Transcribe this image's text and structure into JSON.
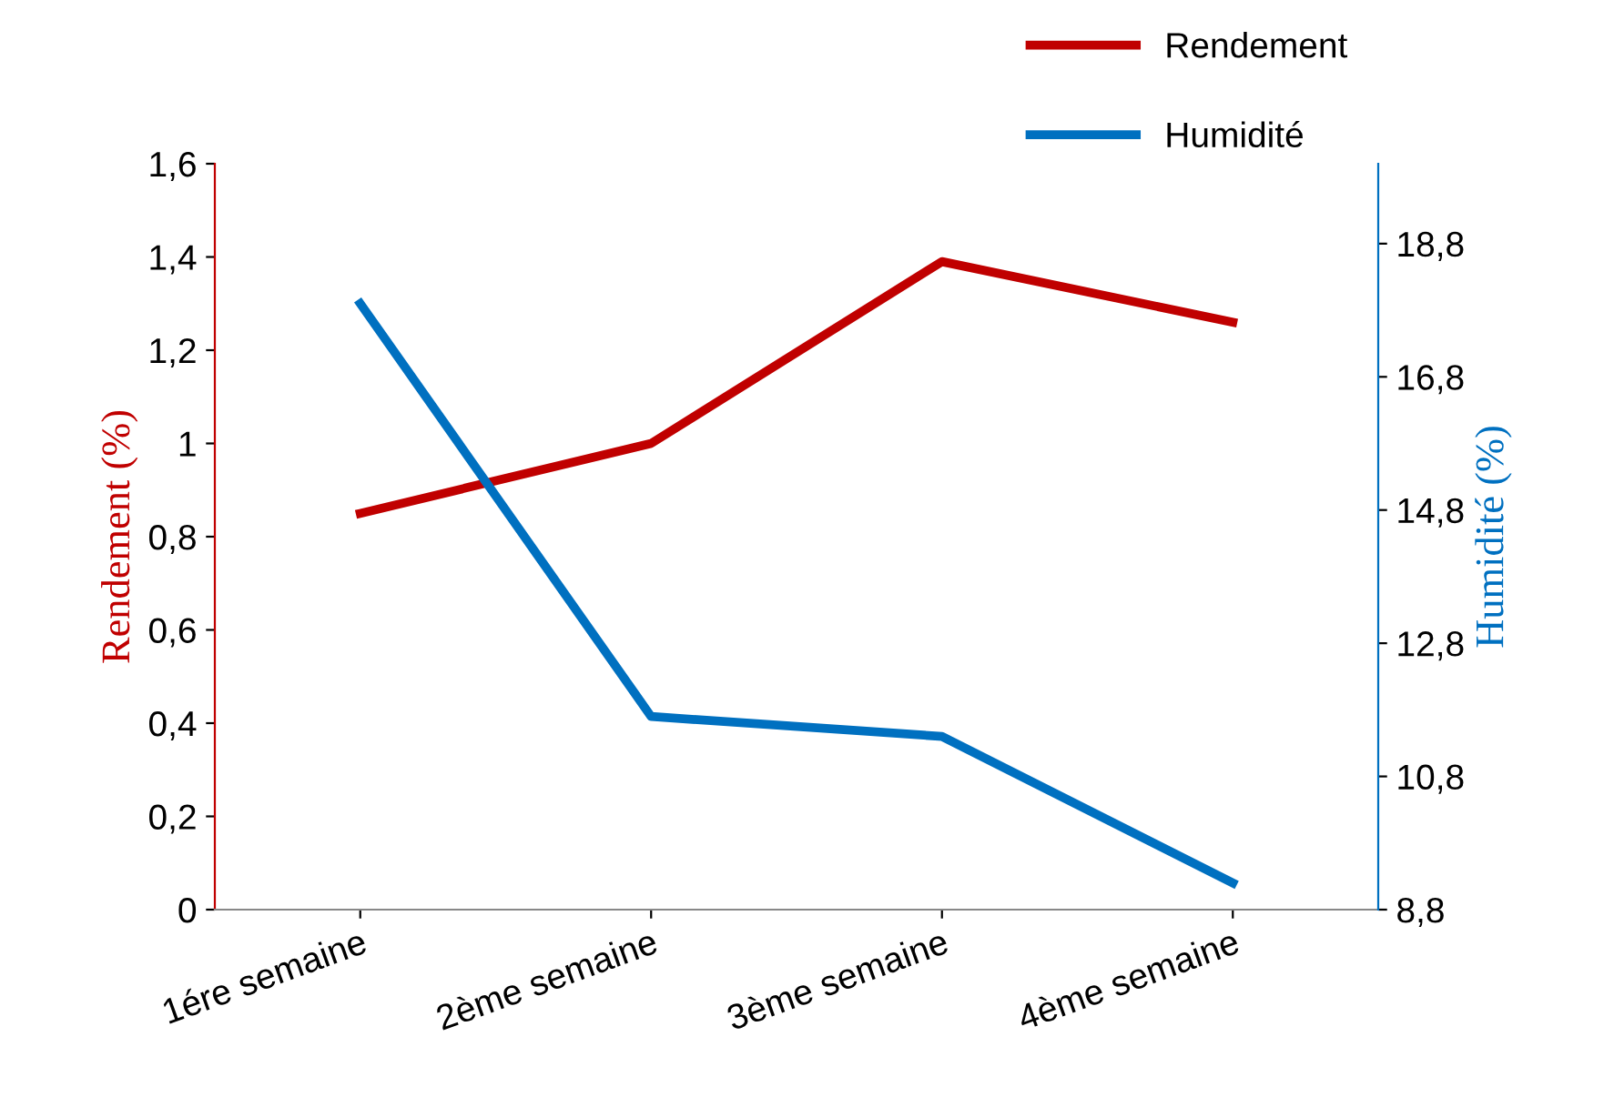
{
  "chart_data": {
    "type": "line",
    "categories": [
      "1ére semaine",
      "2ème semaine",
      "3ème semaine",
      "4ème semaine"
    ],
    "series": [
      {
        "name": "Rendement",
        "color": "#c00000",
        "values": [
          0.85,
          1.0,
          1.39,
          1.26
        ]
      },
      {
        "name": "Humidité",
        "color": "#0070c0",
        "values": [
          17.9,
          11.7,
          11.4,
          9.2
        ],
        "axis": "y2"
      }
    ],
    "ylabel": "Rendement (%)",
    "y2label": "Humidité (%)",
    "ylim": [
      0,
      1.6
    ],
    "yticks": [
      0,
      {
        "value": 0.2,
        "label": "0,2"
      },
      {
        "value": 0.4,
        "label": "0,4"
      },
      {
        "value": 0.6,
        "label": "0,6"
      },
      {
        "value": 0.8,
        "label": "0,8"
      },
      1,
      {
        "value": 1.2,
        "label": "1,2"
      },
      {
        "value": 1.4,
        "label": "1,4"
      },
      {
        "value": 1.6,
        "label": "1,6"
      }
    ],
    "y2lim": [
      8.8,
      20
    ],
    "y2ticks": [
      {
        "value": 8.8,
        "label": "8,8"
      },
      {
        "value": 10.8,
        "label": "10,8"
      },
      {
        "value": 12.8,
        "label": "12,8"
      },
      {
        "value": 14.8,
        "label": "14,8"
      },
      {
        "value": 16.8,
        "label": "16,8"
      },
      {
        "value": 18.8,
        "label": "18,8"
      }
    ],
    "grid": false,
    "legend": "top right",
    "marker": "none",
    "line_style": "solid"
  }
}
